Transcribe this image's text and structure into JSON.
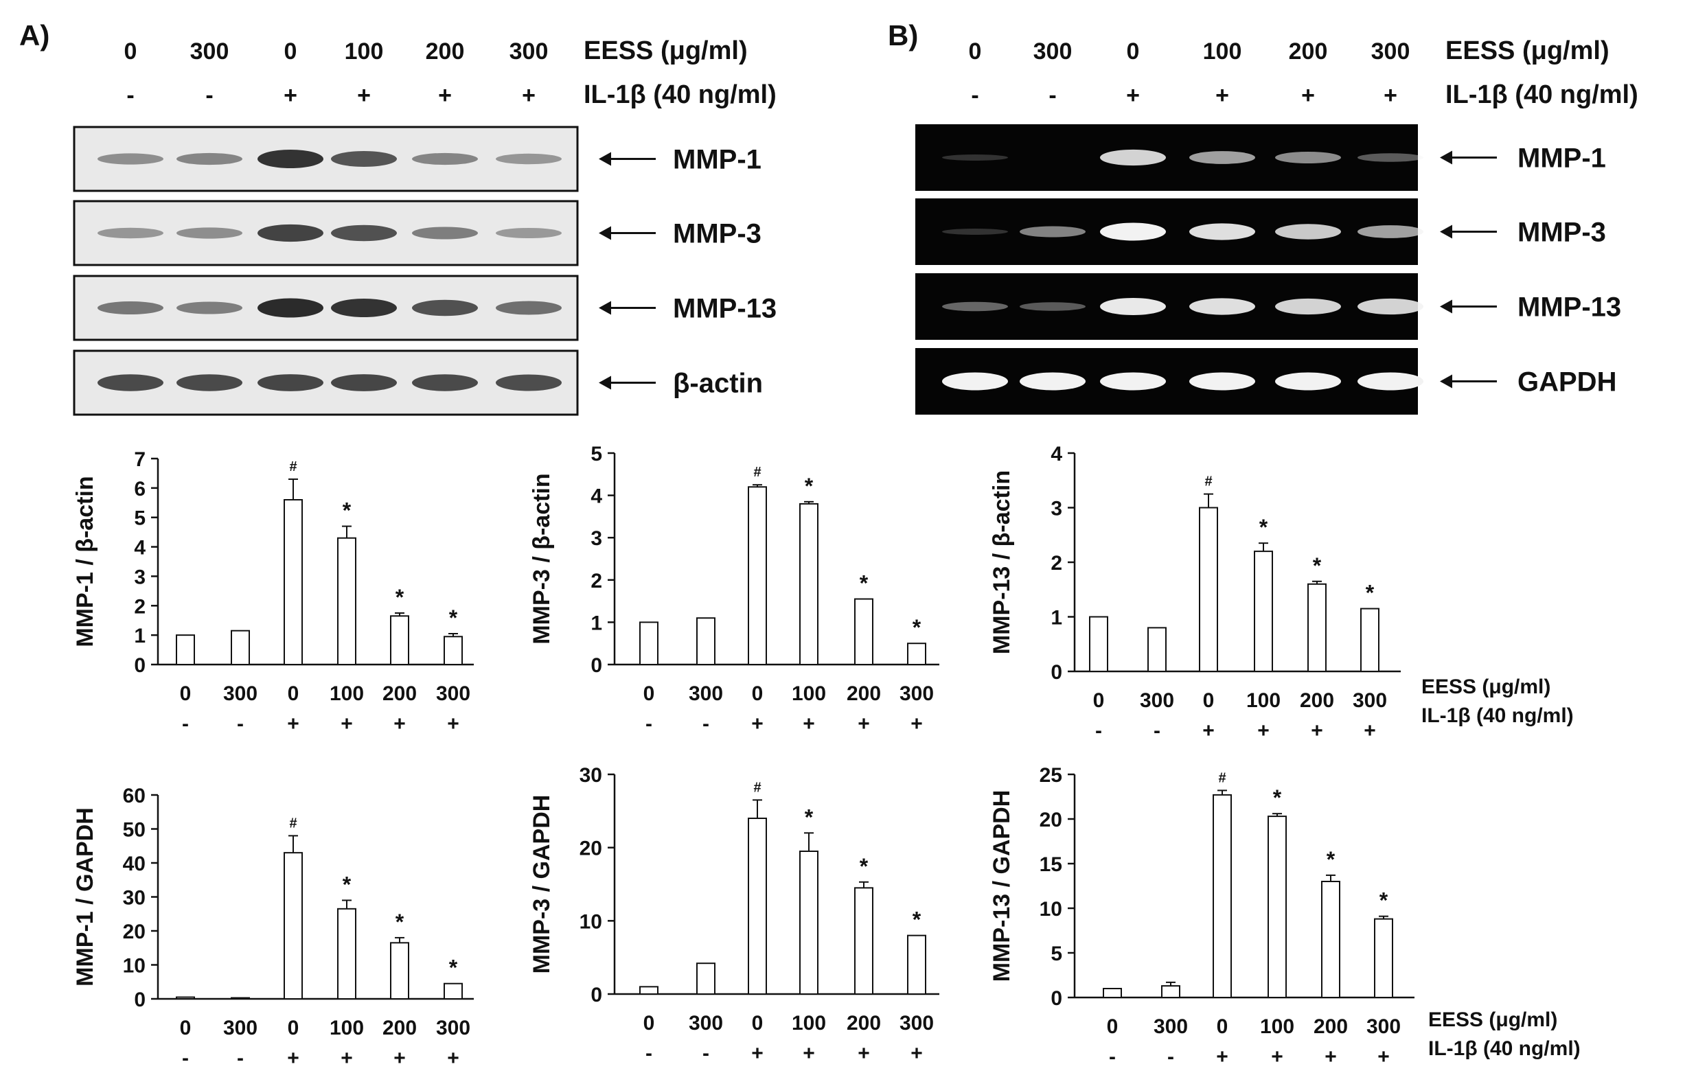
{
  "figure": {
    "panel_a_label": "A)",
    "panel_b_label": "B)",
    "doses": [
      "0",
      "300",
      "0",
      "100",
      "200",
      "300"
    ],
    "il1b_signs": [
      "-",
      "-",
      "+",
      "+",
      "+",
      "+"
    ],
    "eess_label": "EESS (μg/ml)",
    "il1b_label": "IL-1β (40 ng/ml)",
    "arrow_glyph": "←",
    "colors": {
      "western_background": "#e9e9e9",
      "western_band": "#2b2b2b",
      "rtpcr_background": "#050505",
      "rtpcr_band": "#f2f2f2",
      "bar_fill": "#ffffff",
      "axis": "#111111"
    },
    "western_blot": {
      "blots": [
        {
          "label": "MMP-1",
          "intensities": [
            0.35,
            0.4,
            0.95,
            0.72,
            0.4,
            0.3
          ]
        },
        {
          "label": "MMP-3",
          "intensities": [
            0.3,
            0.35,
            0.85,
            0.75,
            0.45,
            0.28
          ]
        },
        {
          "label": "MMP-13",
          "intensities": [
            0.5,
            0.45,
            1.0,
            0.95,
            0.75,
            0.55
          ]
        },
        {
          "label": "β-actin",
          "intensities": [
            0.8,
            0.8,
            0.82,
            0.82,
            0.8,
            0.78
          ]
        }
      ]
    },
    "rt_pcr": {
      "gels": [
        {
          "label": "MMP-1",
          "intensities": [
            0.05,
            0.0,
            0.85,
            0.6,
            0.5,
            0.25
          ]
        },
        {
          "label": "MMP-3",
          "intensities": [
            0.05,
            0.45,
            1.0,
            0.9,
            0.8,
            0.6
          ]
        },
        {
          "label": "MMP-13",
          "intensities": [
            0.3,
            0.25,
            0.95,
            0.9,
            0.85,
            0.85
          ]
        },
        {
          "label": "GAPDH",
          "intensities": [
            1.0,
            1.0,
            1.0,
            1.0,
            1.0,
            1.0
          ]
        }
      ]
    }
  },
  "chart_data": [
    {
      "type": "bar",
      "categories": [
        "0",
        "300",
        "0",
        "100",
        "200",
        "300"
      ],
      "values": [
        1.0,
        1.15,
        5.6,
        4.3,
        1.65,
        0.95
      ],
      "errors": [
        0,
        0,
        0.7,
        0.4,
        0.1,
        0.1
      ],
      "marks": [
        "",
        "",
        "#",
        "*",
        "*",
        "*"
      ],
      "ylabel": "MMP-1 / β-actin",
      "ylim": [
        0,
        7
      ],
      "yticks": [
        0,
        1,
        2,
        3,
        4,
        5,
        6,
        7
      ]
    },
    {
      "type": "bar",
      "categories": [
        "0",
        "300",
        "0",
        "100",
        "200",
        "300"
      ],
      "values": [
        1.0,
        1.1,
        4.2,
        3.8,
        1.55,
        0.5
      ],
      "errors": [
        0,
        0,
        0.05,
        0.05,
        0,
        0
      ],
      "marks": [
        "",
        "",
        "#",
        "*",
        "*",
        "*"
      ],
      "ylabel": "MMP-3 / β-actin",
      "ylim": [
        0,
        5
      ],
      "yticks": [
        0,
        1,
        2,
        3,
        4,
        5
      ]
    },
    {
      "type": "bar",
      "categories": [
        "0",
        "300",
        "0",
        "100",
        "200",
        "300"
      ],
      "values": [
        1.0,
        0.8,
        3.0,
        2.2,
        1.6,
        1.15
      ],
      "errors": [
        0,
        0,
        0.25,
        0.15,
        0.05,
        0
      ],
      "marks": [
        "",
        "",
        "#",
        "*",
        "*",
        "*"
      ],
      "ylabel": "MMP-13 / β-actin",
      "ylim": [
        0,
        4
      ],
      "yticks": [
        0,
        1,
        2,
        3,
        4
      ]
    },
    {
      "type": "bar",
      "categories": [
        "0",
        "300",
        "0",
        "100",
        "200",
        "300"
      ],
      "values": [
        0.5,
        0.3,
        43,
        26.5,
        16.5,
        4.5
      ],
      "errors": [
        0,
        0,
        5,
        2.5,
        1.5,
        0
      ],
      "marks": [
        "",
        "",
        "#",
        "*",
        "*",
        "*"
      ],
      "ylabel": "MMP-1 / GAPDH",
      "ylim": [
        0,
        60
      ],
      "yticks": [
        0,
        10,
        20,
        30,
        40,
        50,
        60
      ]
    },
    {
      "type": "bar",
      "categories": [
        "0",
        "300",
        "0",
        "100",
        "200",
        "300"
      ],
      "values": [
        1.0,
        4.2,
        24,
        19.5,
        14.5,
        8.0
      ],
      "errors": [
        0,
        0,
        2.5,
        2.5,
        0.8,
        0
      ],
      "marks": [
        "",
        "",
        "#",
        "*",
        "*",
        "*"
      ],
      "ylabel": "MMP-3 / GAPDH",
      "ylim": [
        0,
        30
      ],
      "yticks": [
        0,
        10,
        20,
        30
      ]
    },
    {
      "type": "bar",
      "categories": [
        "0",
        "300",
        "0",
        "100",
        "200",
        "300"
      ],
      "values": [
        1.0,
        1.3,
        22.7,
        20.3,
        13.0,
        8.8
      ],
      "errors": [
        0,
        0.4,
        0.5,
        0.3,
        0.7,
        0.3
      ],
      "marks": [
        "",
        "",
        "#",
        "*",
        "*",
        "*"
      ],
      "ylabel": "MMP-13 / GAPDH",
      "ylim": [
        0,
        25
      ],
      "yticks": [
        0,
        5,
        10,
        15,
        20,
        25
      ]
    }
  ]
}
